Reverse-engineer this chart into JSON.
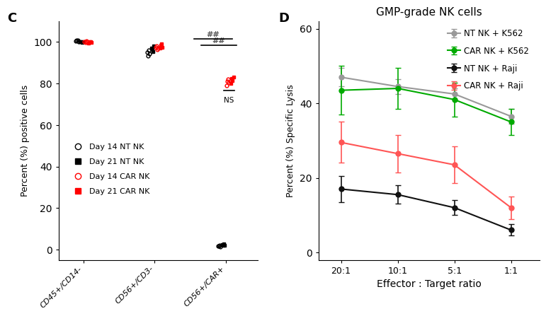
{
  "panel_C": {
    "ylabel": "Percent (%) positive cells",
    "xlabels": [
      "CD45+/CD14-",
      "CD56+/CD3-",
      "CD56+/CAR+"
    ],
    "ylim": [
      -5,
      110
    ],
    "yticks": [
      0,
      20,
      40,
      60,
      80,
      100
    ],
    "groups": {
      "Day14_NT": {
        "color": "black",
        "marker": "o",
        "filled": false,
        "values": [
          [
            100.5,
            100.8,
            101.0,
            100.2
          ],
          [
            95.0,
            93.5,
            96.0,
            94.5
          ],
          [
            1.5,
            1.8,
            2.0,
            1.2
          ]
        ]
      },
      "Day21_NT": {
        "color": "black",
        "marker": "s",
        "filled": true,
        "values": [
          [
            100.0,
            100.3,
            99.8,
            100.1
          ],
          [
            97.0,
            96.5,
            95.5,
            98.0
          ],
          [
            2.5,
            2.0,
            2.8,
            1.9
          ]
        ]
      },
      "Day14_CAR": {
        "color": "red",
        "marker": "o",
        "filled": false,
        "values": [
          [
            100.2,
            99.8,
            100.4,
            100.0
          ],
          [
            97.5,
            98.0,
            96.5,
            97.0
          ],
          [
            79.0,
            81.0,
            82.0,
            80.5
          ]
        ]
      },
      "Day21_CAR": {
        "color": "red",
        "marker": "s",
        "filled": true,
        "values": [
          [
            99.5,
            100.2,
            100.0,
            99.8
          ],
          [
            97.0,
            98.5,
            99.0,
            97.5
          ],
          [
            80.0,
            82.5,
            81.5,
            83.0
          ]
        ]
      }
    },
    "group_x_offset": {
      "Day14_NT": -0.09,
      "Day21_NT": -0.03,
      "Day14_CAR": 0.03,
      "Day21_CAR": 0.09
    },
    "legend": [
      {
        "label": "Day 14 NT NK",
        "color": "black",
        "marker": "o",
        "filled": false
      },
      {
        "label": "Day 21 NT NK",
        "color": "black",
        "marker": "s",
        "filled": true
      },
      {
        "label": "Day 14 CAR NK",
        "color": "red",
        "marker": "o",
        "filled": false
      },
      {
        "label": "Day 21 CAR NK",
        "color": "red",
        "marker": "s",
        "filled": true
      }
    ]
  },
  "panel_D": {
    "title": "GMP-grade NK cells",
    "xlabel": "Effector : Target ratio",
    "ylabel": "Percent (%) Specific Lysis",
    "xlabels": [
      "20:1",
      "10:1",
      "5:1",
      "1:1"
    ],
    "xvals": [
      0,
      1,
      2,
      3
    ],
    "ylim": [
      -2,
      62
    ],
    "yticks": [
      0,
      20,
      40,
      60
    ],
    "series": {
      "NT_NK_K562": {
        "label": "NT NK + K562",
        "color": "#999999",
        "mean": [
          47.0,
          44.5,
          42.5,
          36.5
        ],
        "err": [
          2.5,
          2.0,
          1.5,
          2.0
        ]
      },
      "CAR_NK_K562": {
        "label": "CAR NK + K562",
        "color": "#00aa00",
        "mean": [
          43.5,
          44.0,
          41.0,
          35.0
        ],
        "err": [
          6.5,
          5.5,
          4.5,
          3.5
        ]
      },
      "NT_NK_Raji": {
        "label": "NT NK + Raji",
        "color": "#111111",
        "mean": [
          17.0,
          15.5,
          12.0,
          6.0
        ],
        "err": [
          3.5,
          2.5,
          2.0,
          1.5
        ]
      },
      "CAR_NK_Raji": {
        "label": "CAR NK + Raji",
        "color": "#ff5555",
        "mean": [
          29.5,
          26.5,
          23.5,
          12.0
        ],
        "err": [
          5.5,
          5.0,
          5.0,
          3.0
        ]
      }
    }
  },
  "background_color": "#ffffff"
}
